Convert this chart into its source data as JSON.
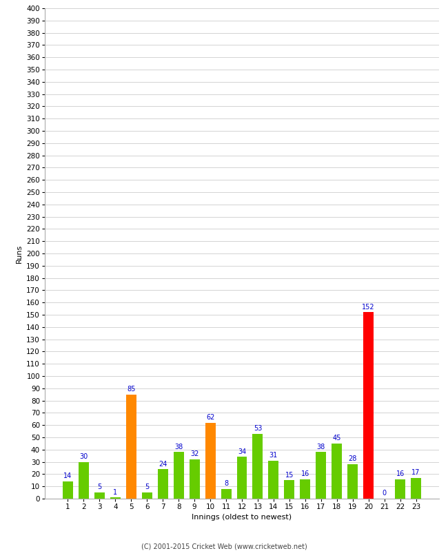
{
  "innings": [
    1,
    2,
    3,
    4,
    5,
    6,
    7,
    8,
    9,
    10,
    11,
    12,
    13,
    14,
    15,
    16,
    17,
    18,
    19,
    20,
    21,
    22,
    23
  ],
  "runs": [
    14,
    30,
    5,
    1,
    85,
    5,
    24,
    38,
    32,
    62,
    8,
    34,
    53,
    31,
    15,
    16,
    38,
    45,
    28,
    152,
    0,
    16,
    17
  ],
  "colors": [
    "#66cc00",
    "#66cc00",
    "#66cc00",
    "#66cc00",
    "#ff8800",
    "#66cc00",
    "#66cc00",
    "#66cc00",
    "#66cc00",
    "#ff8800",
    "#66cc00",
    "#66cc00",
    "#66cc00",
    "#66cc00",
    "#66cc00",
    "#66cc00",
    "#66cc00",
    "#66cc00",
    "#66cc00",
    "#ff0000",
    "#66cc00",
    "#66cc00",
    "#66cc00"
  ],
  "xlabel": "Innings (oldest to newest)",
  "ylabel": "Runs",
  "ylim": [
    0,
    400
  ],
  "ytick_step": 10,
  "footer": "(C) 2001-2015 Cricket Web (www.cricketweb.net)",
  "label_color": "#0000cc",
  "background_color": "#ffffff",
  "grid_color": "#cccccc",
  "bar_width": 0.65
}
